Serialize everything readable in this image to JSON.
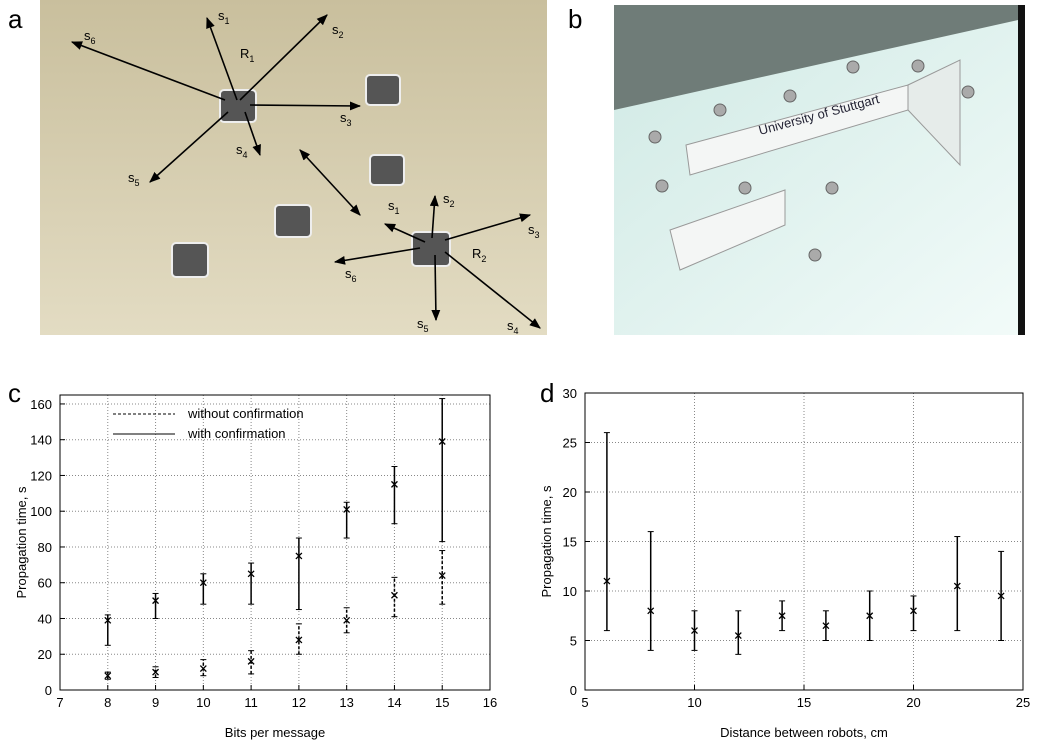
{
  "panels": {
    "a": "a",
    "b": "b",
    "c": "c",
    "d": "d"
  },
  "photo_a": {
    "R1": {
      "base": "R",
      "sub": "1"
    },
    "R2": {
      "base": "R",
      "sub": "2"
    },
    "r1_labels": [
      {
        "base": "s",
        "sub": "1"
      },
      {
        "base": "s",
        "sub": "2"
      },
      {
        "base": "s",
        "sub": "3"
      },
      {
        "base": "s",
        "sub": "4"
      },
      {
        "base": "s",
        "sub": "5"
      },
      {
        "base": "s",
        "sub": "6"
      }
    ],
    "r2_labels": [
      {
        "base": "s",
        "sub": "1"
      },
      {
        "base": "s",
        "sub": "2"
      },
      {
        "base": "s",
        "sub": "3"
      },
      {
        "base": "s",
        "sub": "4"
      },
      {
        "base": "s",
        "sub": "5"
      },
      {
        "base": "s",
        "sub": "6"
      }
    ]
  },
  "photo_b": {
    "sign": "University of Stuttgart"
  },
  "chart_data": [
    {
      "type": "errorbar",
      "xlabel": "Bits per message",
      "ylabel": "Propagation time, s",
      "xlim": [
        7,
        16
      ],
      "xticks": [
        7,
        8,
        9,
        10,
        11,
        12,
        13,
        14,
        15,
        16
      ],
      "ylim": [
        0,
        165
      ],
      "yticks": [
        0,
        20,
        40,
        60,
        80,
        100,
        120,
        140,
        160
      ],
      "grid": true,
      "legend": "upper left",
      "x": [
        8,
        9,
        10,
        11,
        12,
        13,
        14,
        15
      ],
      "series": [
        {
          "name": "without confirmation",
          "color": "#000000",
          "dashed": true,
          "values": [
            8,
            10,
            12,
            16,
            28,
            39,
            53,
            64
          ],
          "lower": [
            6,
            7,
            8,
            9,
            20,
            32,
            41,
            48
          ],
          "upper": [
            10,
            13,
            17,
            22,
            37,
            46,
            63,
            78
          ]
        },
        {
          "name": "with confirmation",
          "color": "#000000",
          "dashed": false,
          "values": [
            39,
            50,
            60,
            65,
            75,
            101,
            115,
            139
          ],
          "lower": [
            25,
            40,
            48,
            48,
            45,
            85,
            93,
            83
          ],
          "upper": [
            42,
            54,
            65,
            71,
            85,
            105,
            125,
            163
          ]
        }
      ]
    },
    {
      "type": "errorbar",
      "xlabel": "Distance between robots, cm",
      "ylabel": "Propagation time, s",
      "xlim": [
        5,
        25
      ],
      "xticks": [
        5,
        10,
        15,
        20,
        25
      ],
      "ylim": [
        0,
        30
      ],
      "yticks": [
        0,
        5,
        10,
        15,
        20,
        25,
        30
      ],
      "grid": true,
      "x": [
        6,
        8,
        10,
        12,
        14,
        16,
        18,
        20,
        22,
        24
      ],
      "series": [
        {
          "color": "#000000",
          "dashed": false,
          "values": [
            11,
            8,
            6,
            5.5,
            7.5,
            6.5,
            7.5,
            8,
            10.5,
            9.5
          ],
          "lower": [
            6,
            4,
            4,
            3.6,
            6,
            5,
            5,
            6,
            6,
            5
          ],
          "upper": [
            26,
            16,
            8,
            8,
            9,
            8,
            10,
            9.5,
            15.5,
            14
          ]
        }
      ]
    }
  ]
}
